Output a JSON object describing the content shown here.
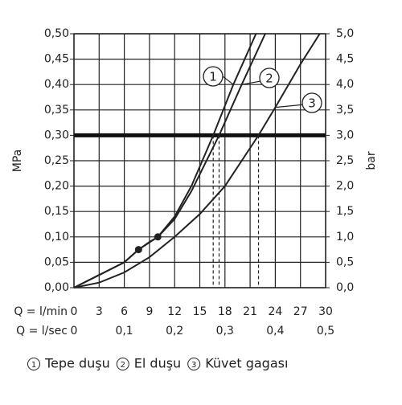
{
  "chart_data": {
    "type": "line",
    "xlabel": "Q = l/min",
    "x2label": "Q = l/sec",
    "ylabel": "MPa",
    "y2label": "bar",
    "xlim": [
      0,
      30
    ],
    "xticks": [
      0,
      3,
      6,
      9,
      12,
      15,
      18,
      21,
      24,
      27,
      30
    ],
    "x2lim": [
      0,
      0.5
    ],
    "x2ticks": [
      0,
      {
        "value": 0.1,
        "label": "0,1"
      },
      {
        "value": 0.2,
        "label": "0,2"
      },
      {
        "value": 0.3,
        "label": "0,3"
      },
      {
        "value": 0.4,
        "label": "0,4"
      },
      {
        "value": 0.5,
        "label": "0,5"
      }
    ],
    "ylim": [
      0,
      0.5
    ],
    "yticks": [
      {
        "value": 0,
        "label": "0,00"
      },
      {
        "value": 0.05,
        "label": "0,05"
      },
      {
        "value": 0.1,
        "label": "0,10"
      },
      {
        "value": 0.15,
        "label": "0,15"
      },
      {
        "value": 0.2,
        "label": "0,20"
      },
      {
        "value": 0.25,
        "label": "0,25"
      },
      {
        "value": 0.3,
        "label": "0,30"
      },
      {
        "value": 0.35,
        "label": "0,35"
      },
      {
        "value": 0.4,
        "label": "0,40"
      },
      {
        "value": 0.45,
        "label": "0,45"
      },
      {
        "value": 0.5,
        "label": "0,50"
      }
    ],
    "y2lim": [
      0,
      5
    ],
    "y2ticks": [
      {
        "value": 0,
        "label": "0,0"
      },
      {
        "value": 0.5,
        "label": "0,5"
      },
      {
        "value": 1,
        "label": "1,0"
      },
      {
        "value": 1.5,
        "label": "1,5"
      },
      {
        "value": 2,
        "label": "2,0"
      },
      {
        "value": 2.5,
        "label": "2,5"
      },
      {
        "value": 3,
        "label": "3,0"
      },
      {
        "value": 3.5,
        "label": "3,5"
      },
      {
        "value": 4,
        "label": "4,0"
      },
      {
        "value": 4.5,
        "label": "4,5"
      },
      {
        "value": 5,
        "label": "5,0"
      }
    ],
    "grid": true,
    "reference_y": 0.3,
    "points": {
      "x": [
        7.7,
        10
      ],
      "values": [
        0.075,
        0.1
      ]
    },
    "series": [
      {
        "name": "Tepe duşu",
        "label": "1",
        "color": "#222222",
        "x": [
          0,
          3,
          6,
          7.7,
          9,
          10,
          12,
          14,
          16.6,
          19,
          21.7
        ],
        "values": [
          0,
          0.025,
          0.05,
          0.075,
          0.09,
          0.1,
          0.14,
          0.2,
          0.3,
          0.4,
          0.5
        ],
        "flow_at_reference": 16.6
      },
      {
        "name": "El duşu",
        "label": "2",
        "color": "#222222",
        "x": [
          0,
          3,
          6,
          7.7,
          10,
          12,
          14,
          17.3,
          20,
          22.8
        ],
        "values": [
          0,
          0.025,
          0.05,
          0.075,
          0.1,
          0.135,
          0.19,
          0.3,
          0.4,
          0.5
        ],
        "flow_at_reference": 17.3
      },
      {
        "name": "Küvet gagası",
        "label": "3",
        "color": "#222222",
        "x": [
          0,
          3,
          6,
          9,
          12,
          15,
          18,
          22,
          24,
          27,
          29.3
        ],
        "values": [
          0,
          0.01,
          0.03,
          0.06,
          0.1,
          0.145,
          0.2,
          0.3,
          0.355,
          0.44,
          0.5
        ],
        "flow_at_reference": 22
      }
    ]
  }
}
